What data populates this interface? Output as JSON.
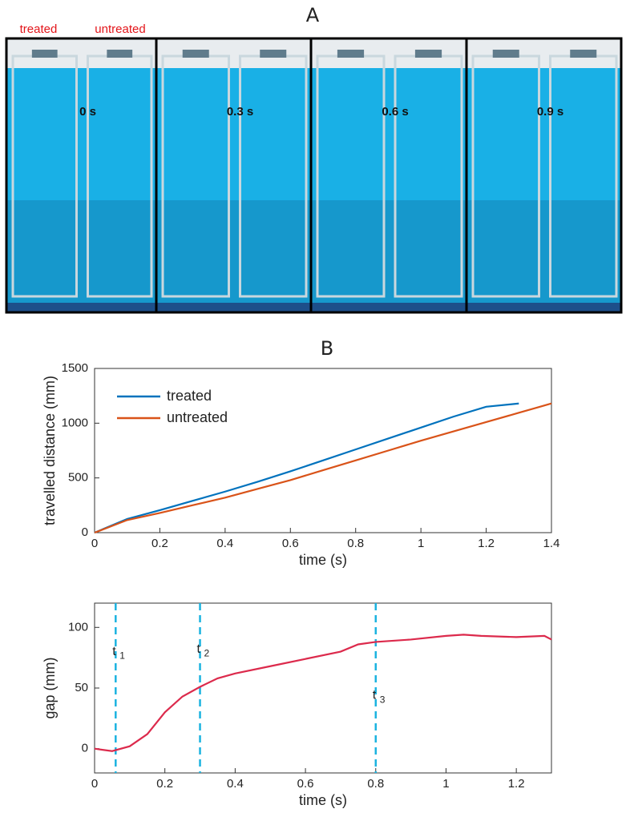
{
  "panel_a": {
    "label": "A",
    "treated": "treated",
    "untreated": "untreated",
    "frames": [
      "0 s",
      "0.3 s",
      "0.6 s",
      "0.9 s"
    ]
  },
  "chart_data": [
    {
      "type": "line",
      "title": "B",
      "xlabel": "time (s)",
      "ylabel": "travelled distance (mm)",
      "x": [
        0,
        0.1,
        0.2,
        0.3,
        0.4,
        0.5,
        0.6,
        0.7,
        0.8,
        0.9,
        1.0,
        1.1,
        1.2,
        1.3,
        1.4
      ],
      "series": [
        {
          "name": "treated",
          "color": "#0072bd",
          "values": [
            0,
            125,
            205,
            290,
            375,
            465,
            560,
            660,
            760,
            860,
            960,
            1060,
            1150,
            1180,
            null
          ]
        },
        {
          "name": "untreated",
          "color": "#d95319",
          "values": [
            0,
            115,
            180,
            250,
            320,
            400,
            480,
            570,
            660,
            750,
            840,
            925,
            1010,
            1095,
            1180
          ]
        }
      ],
      "xlim": [
        0,
        1.4
      ],
      "xticks": [
        0,
        0.2,
        0.4,
        0.6,
        0.8,
        1,
        1.2,
        1.4
      ],
      "ylim": [
        0,
        1500
      ],
      "yticks": [
        0,
        500,
        1000,
        1500
      ],
      "legend": "upper left"
    },
    {
      "type": "line",
      "xlabel": "time (s)",
      "ylabel": "gap (mm)",
      "x": [
        0,
        0.05,
        0.1,
        0.15,
        0.2,
        0.25,
        0.3,
        0.35,
        0.4,
        0.5,
        0.6,
        0.7,
        0.75,
        0.8,
        0.9,
        1.0,
        1.05,
        1.1,
        1.2,
        1.28,
        1.3
      ],
      "series": [
        {
          "color": "#dc2a4c",
          "values": [
            0,
            -2,
            2,
            12,
            30,
            43,
            51,
            58,
            62,
            68,
            74,
            80,
            86,
            88,
            90,
            93,
            94,
            93,
            92,
            93,
            90
          ]
        }
      ],
      "annotations": [
        {
          "x": 0.06,
          "y": 80,
          "label": "t",
          "sub": "1"
        },
        {
          "x": 0.3,
          "y": 82,
          "label": "t",
          "sub": "2"
        },
        {
          "x": 0.8,
          "y": 44,
          "label": "t",
          "sub": "3"
        }
      ],
      "annotation_color": "#1bb3e0",
      "xlim": [
        0,
        1.3
      ],
      "xticks": [
        0,
        0.2,
        0.4,
        0.6,
        0.8,
        1,
        1.2
      ],
      "ylim": [
        -20,
        120
      ],
      "yticks": [
        0,
        50,
        100
      ]
    }
  ]
}
